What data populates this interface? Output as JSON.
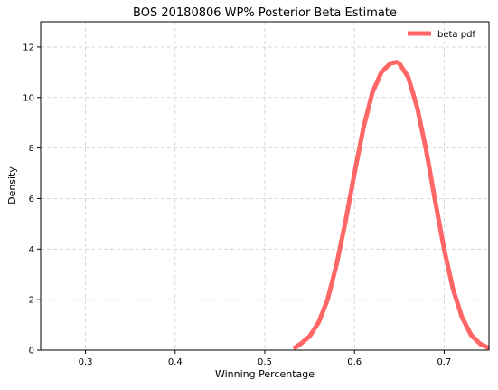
{
  "chart_data": {
    "type": "line",
    "title": "BOS 20180806 WP% Posterior Beta Estimate",
    "xlabel": "Winning Percentage",
    "ylabel": "Density",
    "xlim": [
      0.25,
      0.75
    ],
    "ylim": [
      0,
      13
    ],
    "x_ticks": [
      0.3,
      0.4,
      0.5,
      0.6,
      0.7
    ],
    "x_tick_labels": [
      "0.3",
      "0.4",
      "0.5",
      "0.6",
      "0.7"
    ],
    "y_ticks": [
      0,
      2,
      4,
      6,
      8,
      10,
      12
    ],
    "y_tick_labels": [
      "0",
      "2",
      "4",
      "6",
      "8",
      "10",
      "12"
    ],
    "grid": true,
    "legend_position": "top-right",
    "series": [
      {
        "name": "beta pdf",
        "color": "#ff6666",
        "x": [
          0.532,
          0.54,
          0.55,
          0.56,
          0.57,
          0.58,
          0.59,
          0.6,
          0.61,
          0.62,
          0.63,
          0.64,
          0.647,
          0.65,
          0.66,
          0.67,
          0.68,
          0.69,
          0.7,
          0.71,
          0.72,
          0.73,
          0.74,
          0.75
        ],
        "y": [
          0.06,
          0.25,
          0.55,
          1.1,
          2.0,
          3.4,
          5.1,
          7.0,
          8.8,
          10.2,
          11.0,
          11.35,
          11.4,
          11.35,
          10.8,
          9.6,
          7.9,
          5.9,
          4.0,
          2.4,
          1.3,
          0.6,
          0.25,
          0.08
        ]
      }
    ]
  }
}
